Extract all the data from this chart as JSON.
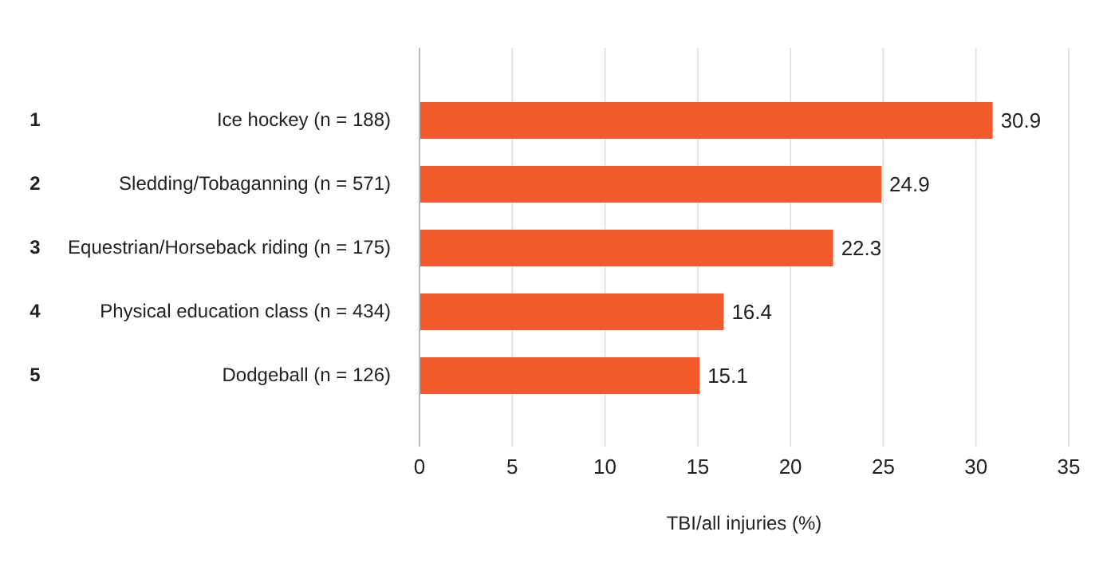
{
  "chart_data": {
    "type": "bar",
    "orientation": "horizontal",
    "categories": [
      "Ice hockey (n = 188)",
      "Sledding/Tobaganning (n = 571)",
      "Equestrian/Horseback riding (n = 175)",
      "Physical education class (n = 434)",
      "Dodgeball (n = 126)"
    ],
    "values": [
      30.9,
      24.9,
      22.3,
      16.4,
      15.1
    ],
    "color": "#f15a2b",
    "xlim": [
      0,
      35
    ],
    "xticks": [
      0,
      5,
      10,
      15,
      20,
      25,
      30,
      35
    ],
    "xlabel": "TBI/all injuries (%)",
    "grid": "x",
    "data_labels": true,
    "annotations": [
      "1",
      "2",
      "3",
      "4",
      "5"
    ]
  }
}
